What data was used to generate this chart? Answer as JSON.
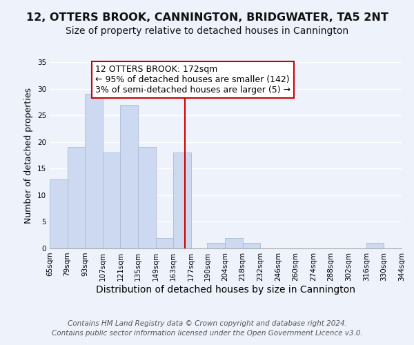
{
  "title": "12, OTTERS BROOK, CANNINGTON, BRIDGWATER, TA5 2NT",
  "subtitle": "Size of property relative to detached houses in Cannington",
  "xlabel": "Distribution of detached houses by size in Cannington",
  "ylabel": "Number of detached properties",
  "bar_color": "#ccd9f0",
  "bar_edge_color": "#aabbd8",
  "bins": [
    65,
    79,
    93,
    107,
    121,
    135,
    149,
    163,
    177,
    190,
    204,
    218,
    232,
    246,
    260,
    274,
    288,
    302,
    316,
    330,
    344
  ],
  "counts": [
    13,
    19,
    29,
    18,
    27,
    19,
    2,
    18,
    0,
    1,
    2,
    1,
    0,
    0,
    0,
    0,
    0,
    0,
    1,
    0
  ],
  "vline_x": 172,
  "vline_color": "#cc0000",
  "ylim": [
    0,
    35
  ],
  "yticks": [
    0,
    5,
    10,
    15,
    20,
    25,
    30,
    35
  ],
  "xtick_labels": [
    "65sqm",
    "79sqm",
    "93sqm",
    "107sqm",
    "121sqm",
    "135sqm",
    "149sqm",
    "163sqm",
    "177sqm",
    "190sqm",
    "204sqm",
    "218sqm",
    "232sqm",
    "246sqm",
    "260sqm",
    "274sqm",
    "288sqm",
    "302sqm",
    "316sqm",
    "330sqm",
    "344sqm"
  ],
  "annotation_title": "12 OTTERS BROOK: 172sqm",
  "annotation_line1": "← 95% of detached houses are smaller (142)",
  "annotation_line2": "3% of semi-detached houses are larger (5) →",
  "annotation_box_color": "#ffffff",
  "annotation_box_edge": "#cc0000",
  "footer1": "Contains HM Land Registry data © Crown copyright and database right 2024.",
  "footer2": "Contains public sector information licensed under the Open Government Licence v3.0.",
  "background_color": "#eef2fb",
  "title_fontsize": 11.5,
  "subtitle_fontsize": 10,
  "xlabel_fontsize": 10,
  "ylabel_fontsize": 9,
  "tick_fontsize": 7.5,
  "annotation_fontsize": 9,
  "footer_fontsize": 7.5
}
